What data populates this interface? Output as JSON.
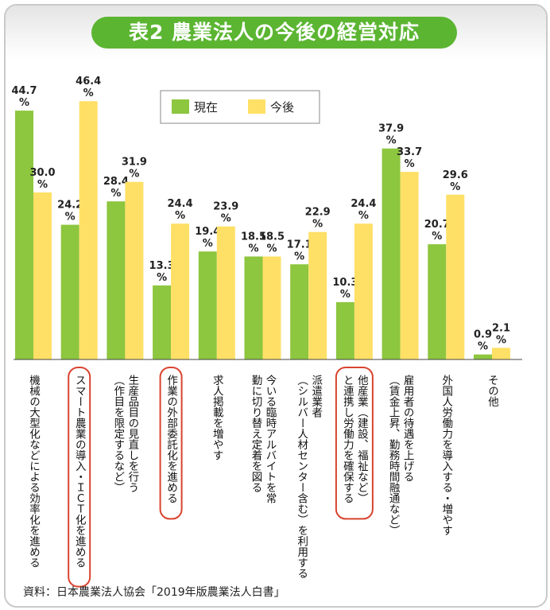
{
  "title": "表2 農業法人の今後の経営対応",
  "source": "資料：日本農業法人協会「2019年版農業法人白書」",
  "colors": {
    "current": "#8dc63f",
    "future": "#ffe066",
    "highlight": "#d9432f",
    "title_bg": "#5bb531"
  },
  "chart_data": {
    "type": "bar",
    "title": "",
    "ylim": [
      0,
      50
    ],
    "unit": "%",
    "grid": false,
    "legend_position": "top-center",
    "categories": [
      "機械の大型化などによる効率化を進める",
      "スマート農業の導入・ＩＣＴ化を進める",
      "生産品目の見直しを行う（作目を限定するなど）",
      "作業の外部委託化を進める",
      "求人掲載を増やす",
      "今いる臨時アルバイトを常勤に切り替え定着を図る",
      "派遣業者（シルバー人材センター含む）を利用する",
      "他産業（建設、福祉など）と連携し労働力を確保する",
      "雇用者の待遇を上げる（賃金上昇、勤務時間融通など）",
      "外国人労働力を導入する・増やす",
      "その他"
    ],
    "series": [
      {
        "name": "現在",
        "values": [
          44.7,
          24.2,
          28.4,
          13.3,
          19.4,
          18.5,
          17.1,
          10.3,
          37.9,
          20.7,
          0.9
        ]
      },
      {
        "name": "今後",
        "values": [
          30.0,
          46.4,
          31.9,
          24.4,
          23.9,
          18.5,
          22.9,
          24.4,
          33.7,
          29.6,
          2.1
        ]
      }
    ],
    "highlighted_categories": [
      1,
      3,
      7
    ]
  }
}
